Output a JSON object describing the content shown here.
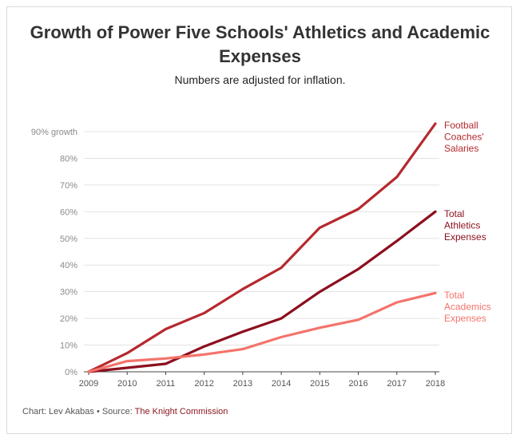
{
  "title": "Growth of Power Five Schools' Athletics and Academic Expenses",
  "subtitle": "Numbers are adjusted for inflation.",
  "footer": {
    "prefix": "Chart: Lev Akabas • Source: ",
    "source": "The Knight Commission"
  },
  "chart_data": {
    "type": "line",
    "x": [
      2009,
      2010,
      2011,
      2012,
      2013,
      2014,
      2015,
      2016,
      2017,
      2018
    ],
    "ylim": [
      0,
      90
    ],
    "yticks": [
      {
        "value": 0,
        "label": "0%"
      },
      {
        "value": 10,
        "label": "10%"
      },
      {
        "value": 20,
        "label": "20%"
      },
      {
        "value": 30,
        "label": "30%"
      },
      {
        "value": 40,
        "label": "40%"
      },
      {
        "value": 50,
        "label": "50%"
      },
      {
        "value": 60,
        "label": "60%"
      },
      {
        "value": 70,
        "label": "70%"
      },
      {
        "value": 80,
        "label": "80%"
      },
      {
        "value": 90,
        "label": "90% growth"
      }
    ],
    "grid": true,
    "series": [
      {
        "name": "Football Coaches' Salaries",
        "label_lines": [
          "Football",
          "Coaches'",
          "Salaries"
        ],
        "color": "#b5292f",
        "values": [
          0,
          7,
          16,
          22,
          31,
          39,
          54,
          61,
          73,
          93
        ]
      },
      {
        "name": "Total Athletics Expenses",
        "label_lines": [
          "Total",
          "Athletics",
          "Expenses"
        ],
        "color": "#8c0f1e",
        "values": [
          0,
          1.5,
          3,
          9.5,
          15,
          20,
          30,
          38.5,
          49,
          60
        ]
      },
      {
        "name": "Total Academics Expenses",
        "label_lines": [
          "Total",
          "Academics",
          "Expenses"
        ],
        "color": "#f4736b",
        "values": [
          0,
          4,
          5,
          6.5,
          8.5,
          13,
          16.5,
          19.5,
          26,
          29.5
        ]
      }
    ]
  }
}
